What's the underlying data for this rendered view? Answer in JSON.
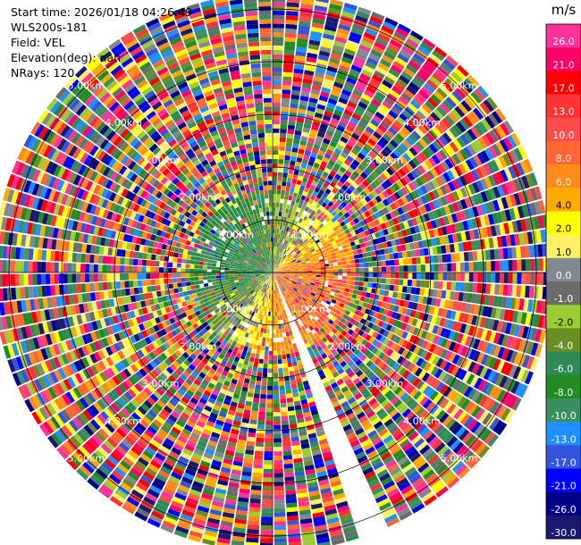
{
  "header": {
    "start_time": "Start time: 2026/01/18 04:26:49",
    "instrument": "WLS200s-181",
    "field": "Field: VEL",
    "elevation": "Elevation(deg): nan",
    "nrays": "NRays: 120"
  },
  "colorbar": {
    "unit": "m/s",
    "levels": [
      {
        "label": "26.0",
        "color": "#ff3399"
      },
      {
        "label": "21.0",
        "color": "#ff0066"
      },
      {
        "label": "17.0",
        "color": "#ff0000"
      },
      {
        "label": "13.0",
        "color": "#ff3333"
      },
      {
        "label": "10.0",
        "color": "#ff4d4d"
      },
      {
        "label": "8.0",
        "color": "#ff6633"
      },
      {
        "label": "6.0",
        "color": "#ff8c1a"
      },
      {
        "label": "4.0",
        "color": "#ffaa00"
      },
      {
        "label": "2.0",
        "color": "#ffff00"
      },
      {
        "label": "1.0",
        "color": "#fff066"
      },
      {
        "label": "0.0",
        "color": "#808890"
      },
      {
        "label": "-1.0",
        "color": "#6b6b6b"
      },
      {
        "label": "-2.0",
        "color": "#9acd32"
      },
      {
        "label": "-4.0",
        "color": "#6b8e23"
      },
      {
        "label": "-6.0",
        "color": "#2e8b57"
      },
      {
        "label": "-8.0",
        "color": "#228b22"
      },
      {
        "label": "-10.0",
        "color": "#3a8e5f"
      },
      {
        "label": "-13.0",
        "color": "#1e90ff"
      },
      {
        "label": "-17.0",
        "color": "#3355dd"
      },
      {
        "label": "-21.0",
        "color": "#0000ff"
      },
      {
        "label": "-26.0",
        "color": "#000088"
      },
      {
        "label": "-30.0",
        "color": "#191970"
      }
    ]
  },
  "chart_data": {
    "type": "heatmap",
    "projection": "polar PPI",
    "field": "VEL",
    "units": "m/s",
    "nrays": 120,
    "range_rings_km": [
      1,
      2,
      3,
      4,
      5
    ],
    "range_ring_labels": [
      "1.00km",
      "2.00km",
      "3.00km",
      "4.00km",
      "5.00km"
    ],
    "max_range_km": 5.3,
    "missing_azimuth_sector_deg": [
      155,
      161
    ],
    "note_values": "per-gate velocities are noise-dominated; rendered procedurally with a near-range pattern"
  }
}
